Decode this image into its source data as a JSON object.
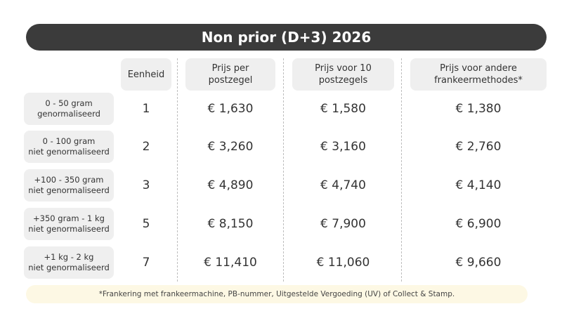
{
  "title": "Non prior (D+3) 2026",
  "headers": {
    "unit": "Eenheid",
    "per_stamp": "Prijs per\npostzegel",
    "per_10": "Prijs voor 10\npostzegels",
    "other": "Prijs voor andere\nfrankeermethodes*"
  },
  "rows": [
    {
      "label": "0 - 50 gram\ngenormaliseerd",
      "unit": "1",
      "per_stamp": "€ 1,630",
      "per_10": "€ 1,580",
      "other": "€ 1,380"
    },
    {
      "label": "0 - 100 gram\nniet genormaliseerd",
      "unit": "2",
      "per_stamp": "€ 3,260",
      "per_10": "€ 3,160",
      "other": "€ 2,760"
    },
    {
      "label": "+100 - 350 gram\nniet genormaliseerd",
      "unit": "3",
      "per_stamp": "€ 4,890",
      "per_10": "€ 4,740",
      "other": "€ 4,140"
    },
    {
      "label": "+350 gram - 1 kg\nniet genormaliseerd",
      "unit": "5",
      "per_stamp": "€ 8,150",
      "per_10": "€ 7,900",
      "other": "€ 6,900"
    },
    {
      "label": "+1 kg - 2 kg\nniet genormaliseerd",
      "unit": "7",
      "per_stamp": "€ 11,410",
      "per_10": "€ 11,060",
      "other": "€ 9,660"
    }
  ],
  "footnote": "*Frankering met frankeermachine, PB-nummer, Uitgestelde Vergoeding (UV) of Collect & Stamp."
}
